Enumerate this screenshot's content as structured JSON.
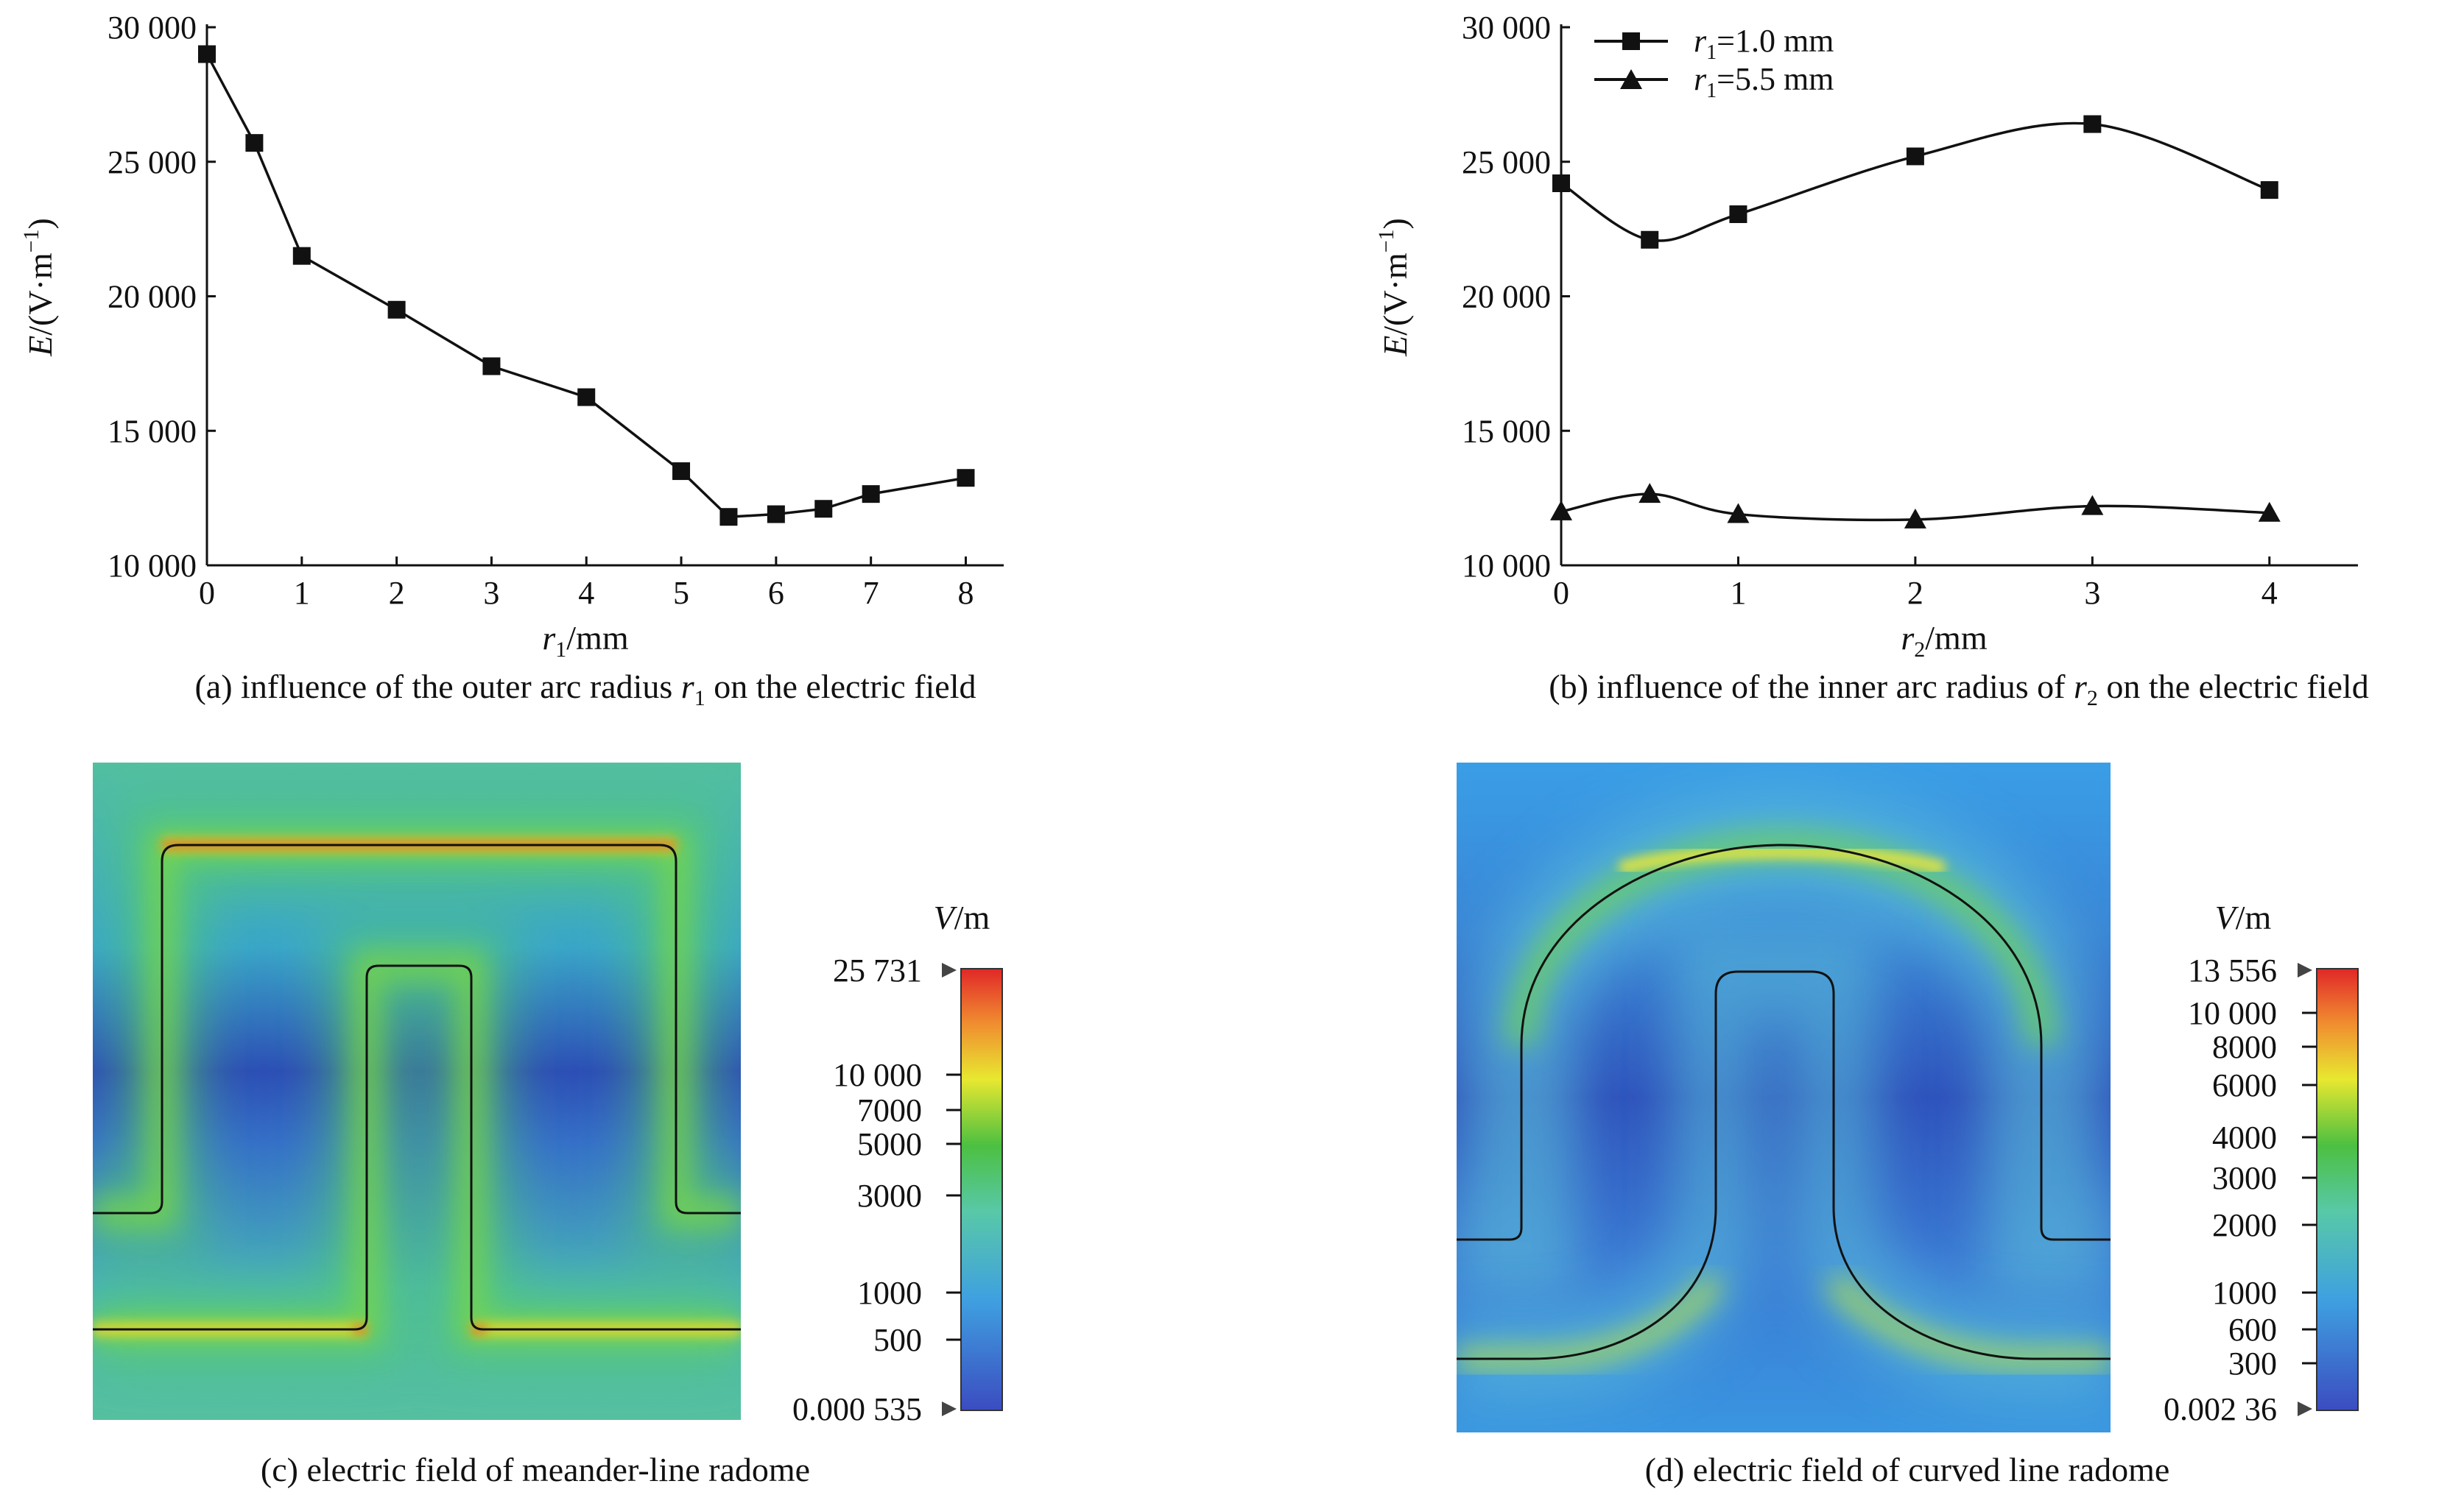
{
  "chart_data": [
    {
      "type": "line",
      "caption": "(a) influence of the outer arc radius r1 on the electric field",
      "xlabel": "r1/mm",
      "ylabel": "E/(V·m−1)",
      "xlim": [
        0,
        8.4
      ],
      "ylim": [
        10000,
        30000
      ],
      "xticks": [
        "0",
        "1",
        "2",
        "3",
        "4",
        "5",
        "6",
        "7",
        "8"
      ],
      "yticks": [
        "10 000",
        "15 000",
        "20 000",
        "25 000",
        "30 000"
      ],
      "grid": false,
      "series": [
        {
          "marker": "square",
          "x": [
            0,
            0.5,
            1,
            2,
            3,
            4,
            5,
            5.5,
            6,
            6.5,
            7,
            8
          ],
          "y": [
            29000,
            25700,
            21500,
            19500,
            17400,
            16250,
            13500,
            11800,
            11900,
            12100,
            12650,
            13250
          ]
        }
      ]
    },
    {
      "type": "line",
      "caption": "(b) influence of the inner arc radius of r2 on the electric field",
      "xlabel": "r2/mm",
      "ylabel": "E/(V·m−1)",
      "xlim": [
        0,
        4.5
      ],
      "ylim": [
        10000,
        30000
      ],
      "xticks": [
        "0",
        "1",
        "2",
        "3",
        "4"
      ],
      "yticks": [
        "10 000",
        "15 000",
        "20 000",
        "25 000",
        "30 000"
      ],
      "grid": false,
      "legend_position": "top-left",
      "series": [
        {
          "name": "r1=1.0 mm",
          "marker": "square",
          "x": [
            0,
            0.5,
            1,
            2,
            3,
            4
          ],
          "y": [
            24200,
            22100,
            23050,
            25200,
            26400,
            23950
          ]
        },
        {
          "name": "r1=5.5 mm",
          "marker": "triangle",
          "x": [
            0,
            0.5,
            1,
            2,
            3,
            4
          ],
          "y": [
            12000,
            12650,
            11900,
            11700,
            12200,
            11950
          ]
        }
      ]
    },
    {
      "type": "heatmap",
      "caption": "(c) electric field of meander-line radome",
      "colorbar": {
        "unit": "V/m",
        "max_label": "25 731",
        "min_label": "0.000 535",
        "tick_labels": [
          "10 000",
          "7000",
          "5000",
          "3000",
          "1000",
          "500"
        ]
      }
    },
    {
      "type": "heatmap",
      "caption": "(d) electric field of curved line radome",
      "colorbar": {
        "unit": "V/m",
        "max_label": "13 556",
        "min_label": "0.002 36",
        "tick_labels": [
          "10 000",
          "8000",
          "6000",
          "4000",
          "3000",
          "2000",
          "1000",
          "600",
          "300"
        ]
      }
    }
  ]
}
